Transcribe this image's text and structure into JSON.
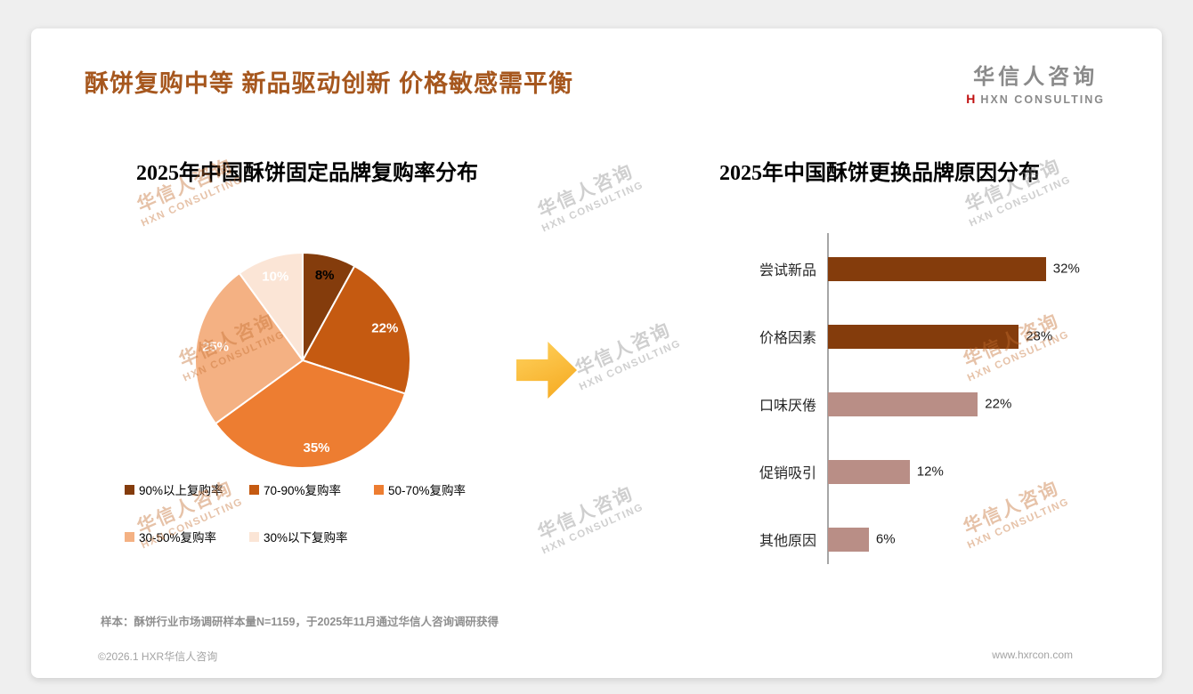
{
  "page": {
    "title": "酥饼复购中等 新品驱动创新 价格敏感需平衡",
    "sample_note": "样本：酥饼行业市场调研样本量N=1159，于2025年11月通过华信人咨询调研获得",
    "copyright": "©2026.1 HXR华信人咨询",
    "website": "www.hxrcon.com"
  },
  "logo": {
    "name": "华信人咨询",
    "mark": "H",
    "subtitle": "HXN CONSULTING"
  },
  "watermark": {
    "line1": "华信人咨询",
    "line2": "HXN CONSULTING"
  },
  "colors": {
    "title": "#A6571E",
    "page_background": "#EFEFEF",
    "card_background": "#FFFFFF",
    "arrow": "#F9B63A",
    "logo_red": "#C01010",
    "axis": "#A6A6A6"
  },
  "chart_data": [
    {
      "type": "pie",
      "title": "2025年中国酥饼固定品牌复购率分布",
      "labels": [
        "90%以上复购率",
        "70-90%复购率",
        "50-70%复购率",
        "30-50%复购率",
        "30%以下复购率"
      ],
      "values": [
        8,
        22,
        35,
        25,
        10
      ],
      "colors": [
        "#843C0C",
        "#C55A11",
        "#ED7D31",
        "#F4B183",
        "#FBE5D6"
      ],
      "label_colors": [
        "#000000",
        "#FFFFFF",
        "#FFFFFF",
        "#FFFFFF",
        "#FFFFFF"
      ],
      "value_suffix": "%",
      "start_angle_deg": 0,
      "direction": "clockwise",
      "legend_position": "bottom"
    },
    {
      "type": "bar",
      "orientation": "horizontal",
      "title": "2025年中国酥饼更换品牌原因分布",
      "categories": [
        "尝试新品",
        "价格因素",
        "口味厌倦",
        "促销吸引",
        "其他原因"
      ],
      "values": [
        32,
        28,
        22,
        12,
        6
      ],
      "colors": [
        "#843C0C",
        "#843C0C",
        "#B98E86",
        "#B98E86",
        "#B98E86"
      ],
      "value_suffix": "%",
      "xlim": [
        0,
        40
      ],
      "grid": false
    }
  ]
}
